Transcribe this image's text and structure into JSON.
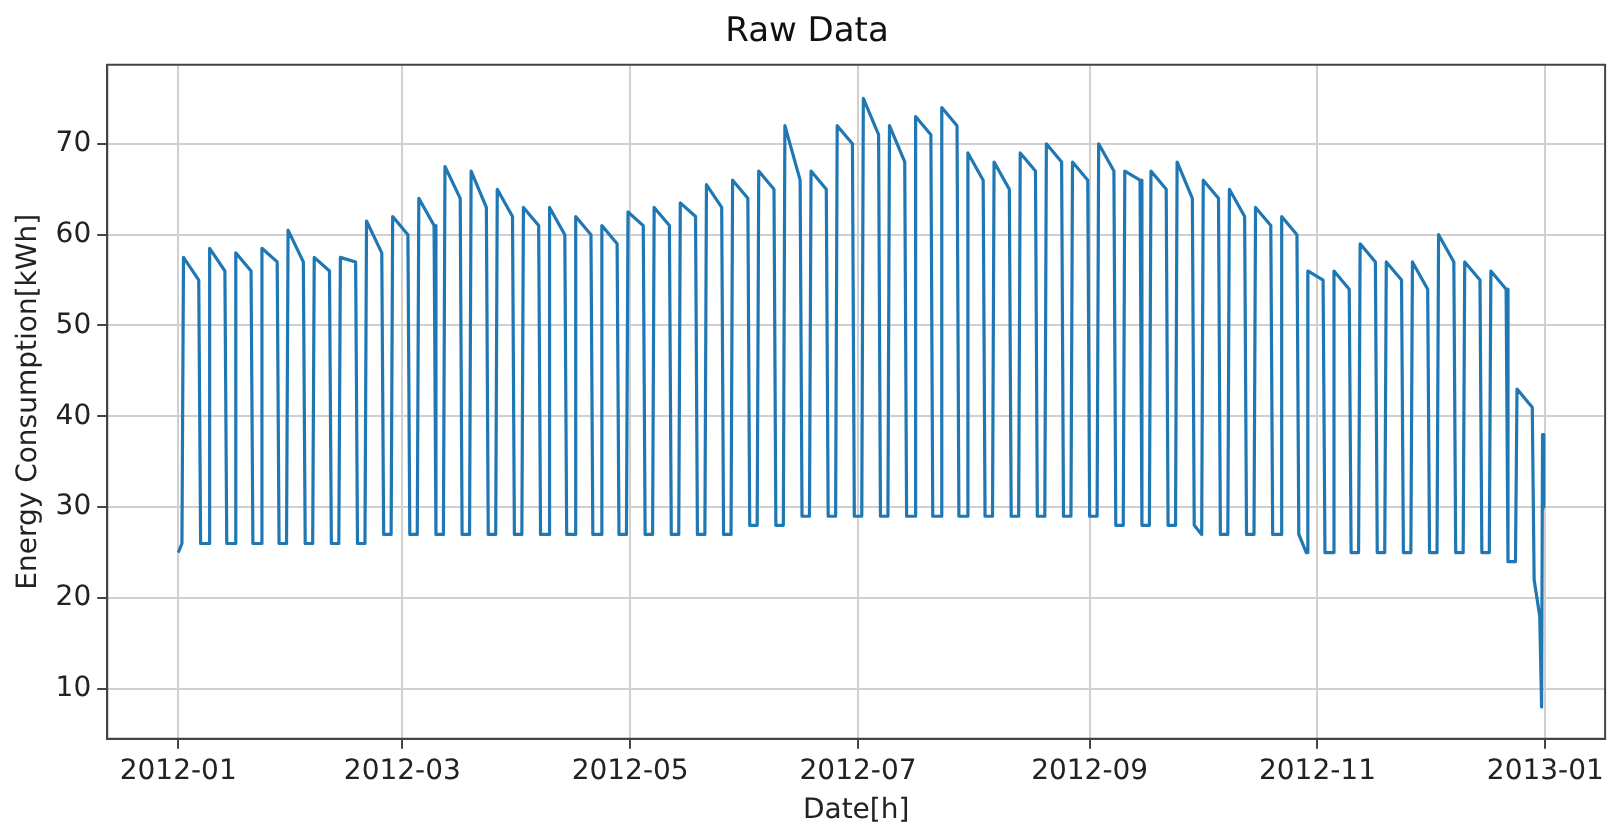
{
  "chart_data": {
    "type": "line",
    "title": "Raw Data",
    "xlabel": "Date[h]",
    "ylabel": "Energy Consumption[kWh]",
    "xlim": [
      "2011-12-13",
      "2013-01-17"
    ],
    "ylim": [
      4.5,
      78.7
    ],
    "xticks": [
      {
        "value": "2012-01-01",
        "label": "2012-01"
      },
      {
        "value": "2012-03-01",
        "label": "2012-03"
      },
      {
        "value": "2012-05-01",
        "label": "2012-05"
      },
      {
        "value": "2012-07-01",
        "label": "2012-07"
      },
      {
        "value": "2012-09-01",
        "label": "2012-09"
      },
      {
        "value": "2012-11-01",
        "label": "2012-11"
      },
      {
        "value": "2013-01-01",
        "label": "2013-01"
      }
    ],
    "yticks": [
      10,
      20,
      30,
      40,
      50,
      60,
      70
    ],
    "grid": true,
    "legend": false,
    "marker": "none",
    "line_style": "solid",
    "series": [
      {
        "color": "#1f77b4",
        "x": [
          "2012-01-01T00:00",
          "2012-01-02T00:00",
          "2012-01-02T10:00",
          "2012-01-06T12:00",
          "2012-01-07T00:00",
          "2012-01-09T00:00",
          "2012-01-09T10:00",
          "2012-01-13T12:00",
          "2012-01-14T00:00",
          "2012-01-16T00:00",
          "2012-01-16T10:00",
          "2012-01-20T12:00",
          "2012-01-21T00:00",
          "2012-01-23T00:00",
          "2012-01-23T10:00",
          "2012-01-27T12:00",
          "2012-01-28T00:00",
          "2012-01-30T00:00",
          "2012-01-30T10:00",
          "2012-02-03T12:00",
          "2012-02-04T00:00",
          "2012-02-06T00:00",
          "2012-02-06T10:00",
          "2012-02-10T12:00",
          "2012-02-11T00:00",
          "2012-02-13T00:00",
          "2012-02-13T10:00",
          "2012-02-17T12:00",
          "2012-02-18T00:00",
          "2012-02-20T00:00",
          "2012-02-20T10:00",
          "2012-02-24T12:00",
          "2012-02-25T00:00",
          "2012-02-27T00:00",
          "2012-02-27T10:00",
          "2012-03-02T12:00",
          "2012-03-03T00:00",
          "2012-03-05T00:00",
          "2012-03-05T10:00",
          "2012-03-09T12:00",
          "2012-03-10T00:00",
          "2012-03-12T00:00",
          "2012-03-12T10:00",
          "2012-03-16T12:00",
          "2012-03-17T00:00",
          "2012-03-19T00:00",
          "2012-03-19T10:00",
          "2012-03-23T12:00",
          "2012-03-24T00:00",
          "2012-03-26T00:00",
          "2012-03-26T10:00",
          "2012-03-30T12:00",
          "2012-03-31T00:00",
          "2012-04-02T00:00",
          "2012-04-02T10:00",
          "2012-04-06T12:00",
          "2012-04-07T00:00",
          "2012-04-09T00:00",
          "2012-04-09T10:00",
          "2012-04-13T12:00",
          "2012-04-14T00:00",
          "2012-04-16T00:00",
          "2012-04-16T10:00",
          "2012-04-20T12:00",
          "2012-04-21T00:00",
          "2012-04-23T00:00",
          "2012-04-23T10:00",
          "2012-04-27T12:00",
          "2012-04-28T00:00",
          "2012-04-30T00:00",
          "2012-04-30T10:00",
          "2012-05-04T12:00",
          "2012-05-05T00:00",
          "2012-05-07T00:00",
          "2012-05-07T10:00",
          "2012-05-11T12:00",
          "2012-05-12T00:00",
          "2012-05-14T00:00",
          "2012-05-14T10:00",
          "2012-05-18T12:00",
          "2012-05-19T00:00",
          "2012-05-21T00:00",
          "2012-05-21T10:00",
          "2012-05-25T12:00",
          "2012-05-26T00:00",
          "2012-05-28T00:00",
          "2012-05-28T10:00",
          "2012-06-01T12:00",
          "2012-06-02T00:00",
          "2012-06-04T00:00",
          "2012-06-04T10:00",
          "2012-06-08T12:00",
          "2012-06-09T00:00",
          "2012-06-11T00:00",
          "2012-06-11T10:00",
          "2012-06-15T12:00",
          "2012-06-16T00:00",
          "2012-06-18T00:00",
          "2012-06-18T10:00",
          "2012-06-22T12:00",
          "2012-06-23T00:00",
          "2012-06-25T00:00",
          "2012-06-25T10:00",
          "2012-06-29T12:00",
          "2012-06-30T00:00",
          "2012-07-02T00:00",
          "2012-07-02T10:00",
          "2012-07-06T12:00",
          "2012-07-07T00:00",
          "2012-07-09T00:00",
          "2012-07-09T10:00",
          "2012-07-13T12:00",
          "2012-07-14T00:00",
          "2012-07-16T00:00",
          "2012-07-16T10:00",
          "2012-07-20T12:00",
          "2012-07-21T00:00",
          "2012-07-23T00:00",
          "2012-07-23T10:00",
          "2012-07-27T12:00",
          "2012-07-28T00:00",
          "2012-07-30T00:00",
          "2012-07-30T10:00",
          "2012-08-03T12:00",
          "2012-08-04T00:00",
          "2012-08-06T00:00",
          "2012-08-06T10:00",
          "2012-08-10T12:00",
          "2012-08-11T00:00",
          "2012-08-13T00:00",
          "2012-08-13T10:00",
          "2012-08-17T12:00",
          "2012-08-18T00:00",
          "2012-08-20T00:00",
          "2012-08-20T10:00",
          "2012-08-24T12:00",
          "2012-08-25T00:00",
          "2012-08-27T00:00",
          "2012-08-27T10:00",
          "2012-08-31T12:00",
          "2012-09-01T00:00",
          "2012-09-03T00:00",
          "2012-09-03T10:00",
          "2012-09-07T12:00",
          "2012-09-08T00:00",
          "2012-09-10T00:00",
          "2012-09-10T10:00",
          "2012-09-14T12:00",
          "2012-09-15T00:00",
          "2012-09-17T00:00",
          "2012-09-17T10:00",
          "2012-09-21T12:00",
          "2012-09-22T00:00",
          "2012-09-24T00:00",
          "2012-09-24T10:00",
          "2012-09-28T12:00",
          "2012-09-29T00:00",
          "2012-10-01T00:00",
          "2012-10-01T10:00",
          "2012-10-05T12:00",
          "2012-10-06T00:00",
          "2012-10-08T00:00",
          "2012-10-08T10:00",
          "2012-10-12T12:00",
          "2012-10-13T00:00",
          "2012-10-15T00:00",
          "2012-10-15T10:00",
          "2012-10-19T12:00",
          "2012-10-20T00:00",
          "2012-10-22T00:00",
          "2012-10-22T10:00",
          "2012-10-26T12:00",
          "2012-10-27T00:00",
          "2012-10-29T00:00",
          "2012-10-29T10:00",
          "2012-11-02T12:00",
          "2012-11-03T00:00",
          "2012-11-05T00:00",
          "2012-11-05T10:00",
          "2012-11-09T12:00",
          "2012-11-10T00:00",
          "2012-11-12T00:00",
          "2012-11-12T10:00",
          "2012-11-16T12:00",
          "2012-11-17T00:00",
          "2012-11-19T00:00",
          "2012-11-19T10:00",
          "2012-11-23T12:00",
          "2012-11-24T00:00",
          "2012-11-26T00:00",
          "2012-11-26T10:00",
          "2012-11-30T12:00",
          "2012-12-01T00:00",
          "2012-12-03T00:00",
          "2012-12-03T10:00",
          "2012-12-07T12:00",
          "2012-12-08T00:00",
          "2012-12-10T00:00",
          "2012-12-10T10:00",
          "2012-12-14T12:00",
          "2012-12-15T00:00",
          "2012-12-17T00:00",
          "2012-12-17T10:00",
          "2012-12-21T12:00",
          "2012-12-22T00:00",
          "2012-12-24T00:00",
          "2012-12-24T10:00",
          "2012-12-28T12:00",
          "2012-12-29T00:00",
          "2012-12-30T12:00",
          "2012-12-31T00:00",
          "2012-12-31T06:00",
          "2012-12-31T14:00"
        ],
        "values": [
          25,
          26,
          57.5,
          55,
          26,
          26,
          58.5,
          56,
          26,
          26,
          58,
          56,
          26,
          26,
          58.5,
          57,
          26,
          26,
          60.5,
          57,
          26,
          26,
          57.5,
          56,
          26,
          26,
          57.5,
          57,
          26,
          26,
          61.5,
          58,
          27,
          27,
          62,
          60,
          27,
          27,
          64,
          61,
          27,
          27,
          67.5,
          64,
          27,
          27,
          67,
          63,
          27,
          27,
          65,
          62,
          27,
          27,
          63,
          61,
          27,
          27,
          63,
          60,
          27,
          27,
          62,
          60,
          27,
          27,
          61,
          59,
          27,
          27,
          62.5,
          61,
          27,
          27,
          63,
          61,
          27,
          27,
          63.5,
          62,
          27,
          27,
          65.5,
          63,
          27,
          27,
          66,
          64,
          28,
          28,
          67,
          65,
          28,
          28,
          72,
          66,
          29,
          29,
          67,
          65,
          29,
          29,
          72,
          70,
          29,
          29,
          75,
          71,
          29,
          29,
          72,
          68,
          29,
          29,
          73,
          71,
          29,
          29,
          74,
          72,
          29,
          29,
          69,
          66,
          29,
          29,
          68,
          65,
          29,
          29,
          69,
          67,
          29,
          29,
          70,
          68,
          29,
          29,
          68,
          66,
          29,
          29,
          70,
          67,
          28,
          28,
          67,
          66,
          28,
          28,
          67,
          65,
          28,
          28,
          68,
          64,
          28,
          27,
          66,
          64,
          27,
          27,
          65,
          62,
          27,
          27,
          63,
          61,
          27,
          27,
          62,
          60,
          27,
          25,
          56,
          55,
          25,
          25,
          56,
          54,
          25,
          25,
          59,
          57,
          25,
          25,
          57,
          55,
          25,
          25,
          57,
          54,
          25,
          25,
          60,
          57,
          25,
          25,
          57,
          55,
          25,
          25,
          56,
          54,
          24,
          24,
          43,
          41,
          22,
          18,
          8,
          38,
          30
        ]
      }
    ]
  }
}
